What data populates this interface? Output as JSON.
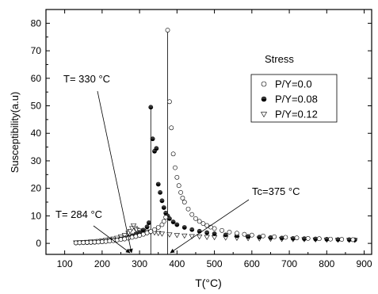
{
  "chart_data": {
    "type": "scatter",
    "xlabel": "T(°C)",
    "ylabel": "Susceptibility(a.u)",
    "xlim": [
      50,
      920
    ],
    "ylim": [
      -4,
      85
    ],
    "xticks": [
      100,
      200,
      300,
      400,
      500,
      600,
      700,
      800,
      900
    ],
    "yticks": [
      0,
      10,
      20,
      30,
      40,
      50,
      60,
      70,
      80
    ],
    "legend_title": "Stress",
    "legend_position": "top-right",
    "series": [
      {
        "name": "P/Y=0.0",
        "marker": "open-circle",
        "points": [
          [
            130,
            0.2
          ],
          [
            140,
            0.25
          ],
          [
            150,
            0.3
          ],
          [
            160,
            0.35
          ],
          [
            170,
            0.4
          ],
          [
            180,
            0.45
          ],
          [
            190,
            0.5
          ],
          [
            200,
            0.6
          ],
          [
            210,
            0.7
          ],
          [
            220,
            0.85
          ],
          [
            230,
            1.0
          ],
          [
            240,
            1.2
          ],
          [
            250,
            1.4
          ],
          [
            260,
            1.6
          ],
          [
            270,
            1.9
          ],
          [
            280,
            2.2
          ],
          [
            290,
            2.5
          ],
          [
            300,
            2.9
          ],
          [
            310,
            3.3
          ],
          [
            320,
            3.8
          ],
          [
            330,
            4.3
          ],
          [
            340,
            5.0
          ],
          [
            350,
            5.8
          ],
          [
            360,
            6.8
          ],
          [
            365,
            8.0
          ],
          [
            370,
            9.5
          ],
          [
            375,
            77.5
          ],
          [
            380,
            51.5
          ],
          [
            385,
            42
          ],
          [
            390,
            32.5
          ],
          [
            395,
            27.5
          ],
          [
            400,
            24
          ],
          [
            405,
            21
          ],
          [
            410,
            18.5
          ],
          [
            415,
            16.5
          ],
          [
            420,
            15
          ],
          [
            430,
            12.5
          ],
          [
            440,
            10.5
          ],
          [
            450,
            9
          ],
          [
            460,
            8
          ],
          [
            470,
            7.2
          ],
          [
            480,
            6.5
          ],
          [
            490,
            5.9
          ],
          [
            500,
            5.4
          ],
          [
            520,
            4.7
          ],
          [
            540,
            4.1
          ],
          [
            560,
            3.7
          ],
          [
            580,
            3.3
          ],
          [
            600,
            3.0
          ],
          [
            630,
            2.7
          ],
          [
            660,
            2.4
          ],
          [
            690,
            2.2
          ],
          [
            720,
            2.0
          ],
          [
            750,
            1.8
          ],
          [
            780,
            1.7
          ],
          [
            810,
            1.55
          ],
          [
            840,
            1.45
          ],
          [
            870,
            1.35
          ]
        ]
      },
      {
        "name": "P/Y=0.08",
        "marker": "half-filled-circle",
        "points": [
          [
            130,
            0.2
          ],
          [
            140,
            0.22
          ],
          [
            150,
            0.25
          ],
          [
            160,
            0.3
          ],
          [
            170,
            0.35
          ],
          [
            180,
            0.4
          ],
          [
            190,
            0.5
          ],
          [
            200,
            0.6
          ],
          [
            210,
            0.75
          ],
          [
            220,
            0.9
          ],
          [
            230,
            1.1
          ],
          [
            240,
            1.3
          ],
          [
            250,
            1.6
          ],
          [
            260,
            1.9
          ],
          [
            270,
            2.3
          ],
          [
            280,
            2.8
          ],
          [
            290,
            3.4
          ],
          [
            300,
            4.0
          ],
          [
            310,
            4.8
          ],
          [
            320,
            6.0
          ],
          [
            325,
            7.5
          ],
          [
            330,
            49.5
          ],
          [
            335,
            38
          ],
          [
            340,
            33.5
          ],
          [
            345,
            34.5
          ],
          [
            350,
            21.5
          ],
          [
            355,
            18.5
          ],
          [
            360,
            15.5
          ],
          [
            365,
            13
          ],
          [
            370,
            11
          ],
          [
            375,
            10
          ],
          [
            380,
            9
          ],
          [
            390,
            7.8
          ],
          [
            400,
            6.8
          ],
          [
            420,
            5.8
          ],
          [
            440,
            5.0
          ],
          [
            460,
            4.4
          ],
          [
            480,
            3.9
          ],
          [
            500,
            3.5
          ],
          [
            530,
            3.1
          ],
          [
            560,
            2.8
          ],
          [
            590,
            2.5
          ],
          [
            620,
            2.3
          ],
          [
            650,
            2.1
          ],
          [
            680,
            1.95
          ],
          [
            710,
            1.8
          ],
          [
            740,
            1.7
          ],
          [
            770,
            1.6
          ],
          [
            800,
            1.5
          ],
          [
            830,
            1.4
          ],
          [
            860,
            1.35
          ],
          [
            875,
            1.3
          ]
        ]
      },
      {
        "name": "P/Y=0.12",
        "marker": "open-triangle-down",
        "points": [
          [
            130,
            0.3
          ],
          [
            140,
            0.35
          ],
          [
            150,
            0.4
          ],
          [
            160,
            0.5
          ],
          [
            170,
            0.6
          ],
          [
            180,
            0.7
          ],
          [
            190,
            0.85
          ],
          [
            200,
            1.0
          ],
          [
            210,
            1.2
          ],
          [
            220,
            1.4
          ],
          [
            230,
            1.7
          ],
          [
            240,
            2.0
          ],
          [
            250,
            2.5
          ],
          [
            260,
            3.0
          ],
          [
            270,
            3.8
          ],
          [
            275,
            4.5
          ],
          [
            280,
            5.5
          ],
          [
            284,
            6.5
          ],
          [
            288,
            5.5
          ],
          [
            292,
            5.0
          ],
          [
            300,
            4.7
          ],
          [
            310,
            4.5
          ],
          [
            320,
            4.3
          ],
          [
            330,
            4.1
          ],
          [
            340,
            3.9
          ],
          [
            350,
            3.7
          ],
          [
            360,
            3.5
          ],
          [
            380,
            3.2
          ],
          [
            400,
            3.0
          ],
          [
            420,
            2.8
          ],
          [
            440,
            2.6
          ],
          [
            460,
            2.45
          ],
          [
            480,
            2.3
          ],
          [
            500,
            2.2
          ],
          [
            530,
            2.05
          ],
          [
            560,
            1.95
          ],
          [
            590,
            1.85
          ],
          [
            620,
            1.75
          ],
          [
            650,
            1.65
          ],
          [
            680,
            1.58
          ],
          [
            710,
            1.5
          ],
          [
            740,
            1.44
          ],
          [
            770,
            1.38
          ],
          [
            800,
            1.32
          ],
          [
            830,
            1.27
          ],
          [
            860,
            1.22
          ],
          [
            875,
            1.2
          ]
        ]
      }
    ],
    "annotations": [
      {
        "text": "T= 330 °C",
        "x": 330
      },
      {
        "text": "T= 284 °C",
        "x": 284
      },
      {
        "text": "Tc=375 °C",
        "x": 375
      }
    ]
  }
}
